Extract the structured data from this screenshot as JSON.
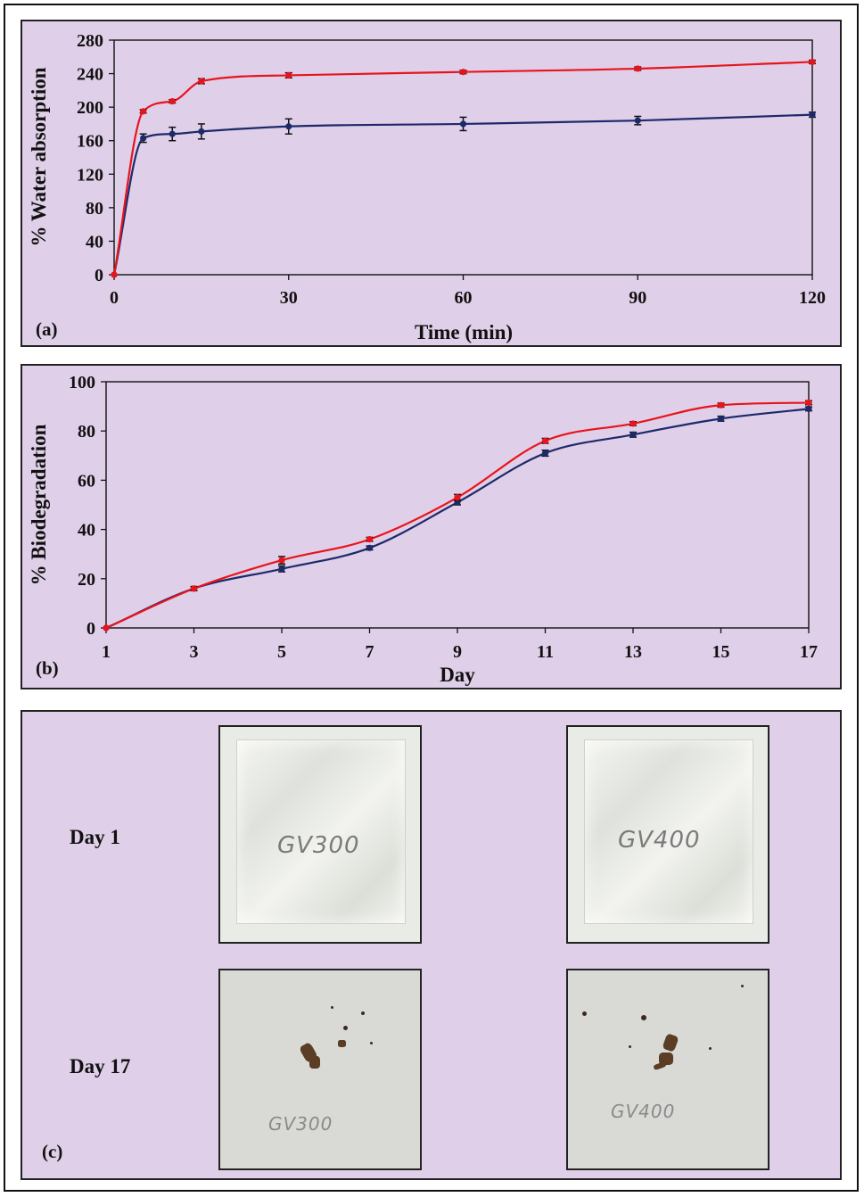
{
  "chart_data": [
    {
      "type": "line",
      "panel_label": "(a)",
      "xlabel": "Time (min)",
      "ylabel": "% Water absorption",
      "xlim": [
        0,
        120
      ],
      "ylim": [
        0,
        280
      ],
      "xticks": [
        0,
        30,
        60,
        90,
        120
      ],
      "yticks": [
        0,
        40,
        80,
        120,
        160,
        200,
        240,
        280
      ],
      "x": [
        0,
        5,
        10,
        15,
        30,
        60,
        90,
        120
      ],
      "series": [
        {
          "color": "#e8141c",
          "values": [
            0,
            195,
            207,
            231,
            238,
            242,
            246,
            254
          ],
          "errors": [
            0,
            2,
            2,
            3,
            3,
            2,
            2,
            2
          ]
        },
        {
          "color": "#1c2a6b",
          "values": [
            0,
            163,
            168,
            171,
            177,
            180,
            184,
            191
          ],
          "errors": [
            0,
            5,
            8,
            9,
            9,
            8,
            5,
            3
          ]
        }
      ],
      "grid": false
    },
    {
      "type": "line",
      "panel_label": "(b)",
      "xlabel": "Day",
      "ylabel": "% Biodegradation",
      "xlim": [
        1,
        17
      ],
      "ylim": [
        0,
        100
      ],
      "xticks": [
        1,
        3,
        5,
        7,
        9,
        11,
        13,
        15,
        17
      ],
      "yticks": [
        0,
        20,
        40,
        60,
        80,
        100
      ],
      "x": [
        1,
        3,
        5,
        7,
        9,
        11,
        13,
        15,
        17
      ],
      "series": [
        {
          "color": "#e8141c",
          "values": [
            0,
            16,
            27.5,
            36,
            53,
            76,
            83,
            90.5,
            91.5
          ],
          "errors": [
            0,
            0.8,
            1.5,
            0.8,
            1.2,
            1.0,
            0.8,
            0.8,
            0.8
          ]
        },
        {
          "color": "#1c2a6b",
          "values": [
            0,
            16,
            24,
            32.5,
            51,
            71,
            78.5,
            85,
            89
          ],
          "errors": [
            0,
            0.8,
            1.2,
            0.8,
            1.0,
            1.2,
            1.0,
            1.0,
            0.8
          ]
        }
      ],
      "grid": false
    }
  ],
  "panel_c": {
    "label": "(c)",
    "rows": [
      {
        "label": "Day 1",
        "samples": [
          "GV300",
          "GV400"
        ]
      },
      {
        "label": "Day 17",
        "samples": [
          "GV300",
          "GV400"
        ]
      }
    ]
  }
}
